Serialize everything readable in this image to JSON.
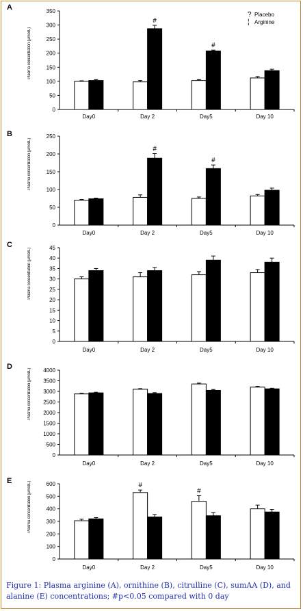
{
  "legend": {
    "placebo_symbol": "?",
    "placebo": "Placebo",
    "arginine_symbol": "¦",
    "arginine": "Arginine"
  },
  "caption": "Figure 1: Plasma arginine (A), ornithine (B), citrulline (C), sumAA (D), and alanine (E) concentrations; #p<0.05 compared with 0 day",
  "colors": {
    "placebo_fill": "#ffffff",
    "arginine_fill": "#000000",
    "caption": "#1f2eb0",
    "frame": "#c8882a"
  },
  "chart_data": [
    {
      "panel": "A",
      "type": "bar",
      "categories": [
        "Day0",
        "Day 2",
        "Day5",
        "Day 10"
      ],
      "ylabel": "Plasma concentration (μmol/L)",
      "ylim": [
        0,
        350
      ],
      "yticks": [
        0,
        50,
        100,
        150,
        200,
        250,
        300,
        350
      ],
      "series": [
        {
          "name": "Placebo",
          "values": [
            100,
            98,
            103,
            112
          ],
          "errors": [
            2,
            5,
            3,
            5
          ],
          "marks": [
            "",
            "",
            "",
            ""
          ]
        },
        {
          "name": "Arginine",
          "values": [
            103,
            287,
            208,
            138
          ],
          "errors": [
            3,
            12,
            3,
            5
          ],
          "marks": [
            "",
            "#",
            "#",
            ""
          ]
        }
      ]
    },
    {
      "panel": "B",
      "type": "bar",
      "categories": [
        "Day0",
        "Day 2",
        "Day5",
        "Day 10"
      ],
      "ylabel": "Plasma concentration (μmol/L)",
      "ylim": [
        0,
        250
      ],
      "yticks": [
        0,
        50,
        100,
        150,
        200,
        250
      ],
      "series": [
        {
          "name": "Placebo",
          "values": [
            70,
            78,
            75,
            82
          ],
          "errors": [
            2,
            7,
            4,
            4
          ],
          "marks": [
            "",
            "",
            "",
            ""
          ]
        },
        {
          "name": "Arginine",
          "values": [
            74,
            188,
            159,
            98
          ],
          "errors": [
            2,
            13,
            10,
            6
          ],
          "marks": [
            "",
            "#",
            "#",
            ""
          ]
        }
      ]
    },
    {
      "panel": "C",
      "type": "bar",
      "categories": [
        "Day0",
        "Day 2",
        "Day5",
        "Day 10"
      ],
      "ylabel": "Plasma concentration (μmol/L)",
      "ylim": [
        0,
        45
      ],
      "yticks": [
        0,
        5,
        10,
        15,
        20,
        25,
        30,
        35,
        40,
        45
      ],
      "series": [
        {
          "name": "Placebo",
          "values": [
            30,
            31,
            32,
            33
          ],
          "errors": [
            1,
            2,
            1.5,
            1.5
          ],
          "marks": [
            "",
            "",
            "",
            ""
          ]
        },
        {
          "name": "Arginine",
          "values": [
            34,
            34,
            39,
            38
          ],
          "errors": [
            1,
            1.5,
            2,
            2
          ],
          "marks": [
            "",
            "",
            "",
            ""
          ]
        }
      ]
    },
    {
      "panel": "D",
      "type": "bar",
      "categories": [
        "Day0",
        "Day 2",
        "Day5",
        "Day 10"
      ],
      "ylabel": "Plasma concentration (μmol/L)",
      "ylim": [
        0,
        4000
      ],
      "yticks": [
        0,
        500,
        1000,
        1500,
        2000,
        2500,
        3000,
        3500,
        4000
      ],
      "series": [
        {
          "name": "Placebo",
          "values": [
            2880,
            3100,
            3350,
            3200
          ],
          "errors": [
            30,
            30,
            40,
            40
          ],
          "marks": [
            "",
            "",
            "",
            ""
          ]
        },
        {
          "name": "Arginine",
          "values": [
            2930,
            2900,
            3050,
            3120
          ],
          "errors": [
            30,
            40,
            40,
            30
          ],
          "marks": [
            "",
            "",
            "",
            ""
          ]
        }
      ]
    },
    {
      "panel": "E",
      "type": "bar",
      "categories": [
        "Day0",
        "Day 2",
        "Day5",
        "Day 10"
      ],
      "ylabel": "Plasma concentration (μmol/L)",
      "ylim": [
        0,
        600
      ],
      "yticks": [
        0,
        100,
        200,
        300,
        400,
        500,
        600
      ],
      "series": [
        {
          "name": "Placebo",
          "values": [
            305,
            530,
            460,
            400
          ],
          "errors": [
            12,
            20,
            45,
            30
          ],
          "marks": [
            "",
            "#",
            "#",
            ""
          ]
        },
        {
          "name": "Arginine",
          "values": [
            320,
            335,
            345,
            375
          ],
          "errors": [
            10,
            20,
            25,
            20
          ],
          "marks": [
            "",
            "",
            "",
            ""
          ]
        }
      ]
    }
  ]
}
